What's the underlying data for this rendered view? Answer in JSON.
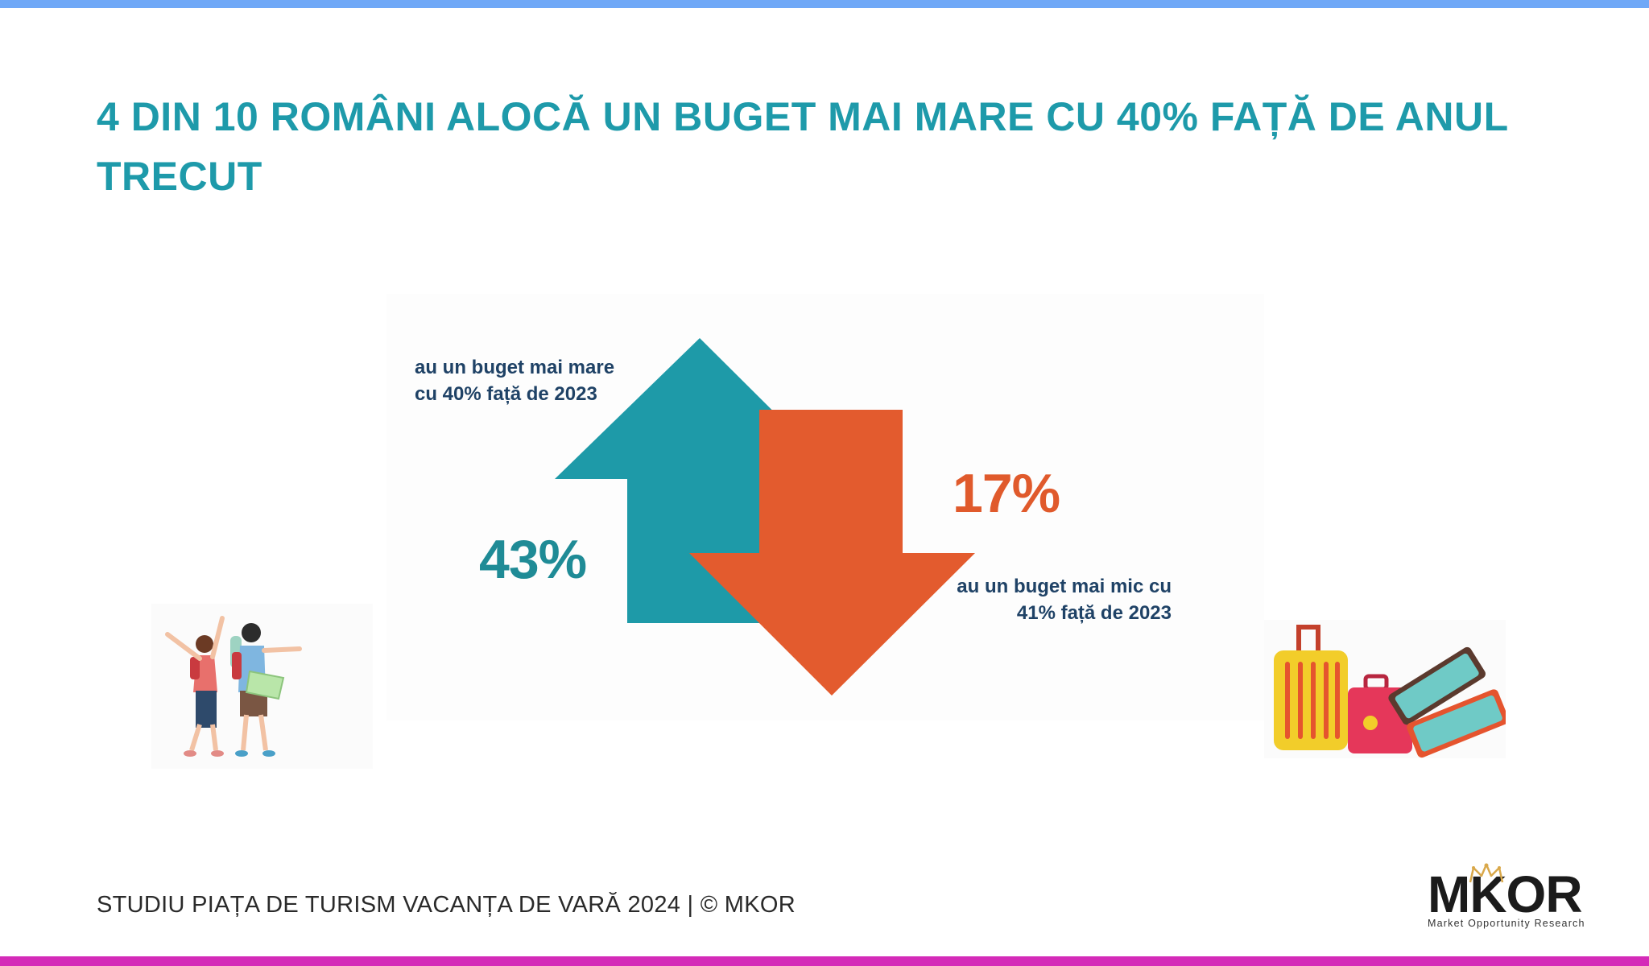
{
  "title": "4 DIN 10 ROMÂNI ALOCĂ UN BUGET MAI MARE CU 40% FAȚĂ DE ANUL TRECUT",
  "infographic": {
    "increase": {
      "percent_label": "43%",
      "description": "au un buget mai mare cu 40% față de 2023",
      "color": "#1e9aa8"
    },
    "decrease": {
      "percent_label": "17%",
      "description": "au un buget mai mic cu 41% față de 2023",
      "color": "#e35b2e"
    }
  },
  "footer": {
    "source_text": "STUDIU PIAȚA DE TURISM VACANȚA DE VARĂ 2024 | © MKOR"
  },
  "logo": {
    "wordmark": "MKOR",
    "tagline": "Market Opportunity Research"
  },
  "colors": {
    "title": "#1e9aaa",
    "top_bar": "#6fa8f7",
    "bottom_bar": "#d42bb8",
    "label_text": "#1f4266"
  }
}
